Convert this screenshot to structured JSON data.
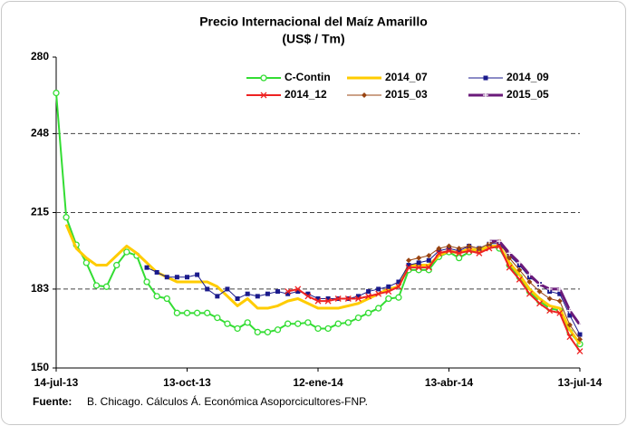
{
  "chart_data": {
    "type": "line",
    "title": "Precio Internacional del Maíz Amarillo",
    "subtitle": "(US$ / Tm)",
    "source_label": "Fuente:",
    "source_text": "B. Chicago. Cálculos Á. Económica Asoporcicultores-FNP.",
    "categories": [
      "14-jul-13",
      null,
      null,
      null,
      null,
      null,
      null,
      null,
      null,
      null,
      null,
      null,
      null,
      "13-oct-13",
      null,
      null,
      null,
      null,
      null,
      null,
      null,
      null,
      null,
      null,
      null,
      null,
      "12-ene-14",
      null,
      null,
      null,
      null,
      null,
      null,
      null,
      null,
      null,
      null,
      null,
      null,
      "13-abr-14",
      null,
      null,
      null,
      null,
      null,
      null,
      null,
      null,
      null,
      null,
      null,
      null,
      "13-jul-14"
    ],
    "ylim": [
      150,
      280
    ],
    "yticks": [
      150,
      183,
      215,
      248,
      280
    ],
    "grid": true,
    "legend": "top",
    "series": [
      {
        "name": "C-Contin",
        "color": "#33dd33",
        "marker": "circle",
        "width": 2,
        "values": [
          265,
          213,
          201.5,
          194,
          184.5,
          184,
          193,
          198.5,
          197,
          186,
          180,
          179,
          173,
          173,
          173,
          173,
          171,
          168.5,
          166.5,
          169,
          165,
          165,
          166,
          168.5,
          168.5,
          169,
          166.5,
          166.5,
          168.5,
          169,
          171,
          173,
          175,
          179,
          179.5,
          191,
          191,
          191,
          196.5,
          198.5,
          196,
          198.5,
          199.5,
          201,
          200,
          193,
          188,
          182,
          178,
          175,
          174,
          165,
          160
        ]
      },
      {
        "name": "2014_07",
        "color": "#ffcc00",
        "marker": "none",
        "width": 3,
        "values": [
          null,
          210,
          200,
          196,
          193,
          193,
          197,
          201,
          198,
          194,
          190,
          188,
          186,
          186,
          186,
          186,
          184,
          180,
          176,
          179,
          175,
          175,
          176,
          178,
          179,
          177,
          175,
          175,
          175,
          176,
          177,
          179,
          181,
          183,
          184,
          193,
          193,
          193,
          197,
          199,
          198,
          200,
          199,
          201,
          201,
          194,
          189,
          183,
          179,
          176,
          175,
          166,
          160
        ]
      },
      {
        "name": "2014_09",
        "color": "#1a1a8c",
        "marker": "square",
        "width": 1,
        "values": [
          null,
          null,
          null,
          null,
          null,
          null,
          null,
          null,
          null,
          192,
          190,
          188,
          188,
          188,
          189,
          183,
          180,
          183,
          179,
          181,
          180,
          181,
          182,
          181,
          182,
          181,
          179,
          179,
          179,
          179,
          180,
          182,
          183,
          184,
          186,
          193,
          194,
          195,
          199,
          200,
          199,
          201,
          200,
          202,
          202,
          197,
          193,
          188,
          185,
          182,
          181,
          172,
          164
        ]
      },
      {
        "name": "2014_12",
        "color": "#ee2222",
        "marker": "x",
        "width": 2,
        "values": [
          null,
          null,
          null,
          null,
          null,
          null,
          null,
          null,
          null,
          null,
          null,
          null,
          null,
          null,
          null,
          null,
          null,
          null,
          null,
          null,
          null,
          null,
          null,
          182,
          183,
          180,
          178,
          178,
          179,
          179,
          179,
          180,
          181,
          182,
          184,
          192,
          192,
          192,
          198,
          199,
          198,
          199,
          198,
          200,
          201,
          192,
          187,
          181,
          177,
          174,
          173,
          163,
          157
        ]
      },
      {
        "name": "2015_03",
        "color": "#994411",
        "marker": "diamond",
        "width": 1,
        "values": [
          null,
          null,
          null,
          null,
          null,
          null,
          null,
          null,
          null,
          null,
          null,
          null,
          null,
          null,
          null,
          null,
          null,
          null,
          null,
          null,
          null,
          null,
          null,
          null,
          null,
          null,
          null,
          null,
          null,
          null,
          null,
          null,
          null,
          null,
          null,
          195,
          196,
          197,
          200,
          201,
          200,
          201,
          200,
          202,
          203,
          196,
          191,
          186,
          182,
          179,
          178,
          168,
          162
        ]
      },
      {
        "name": "2015_05",
        "color": "#6a1a7a",
        "marker": "plus",
        "width": 3,
        "values": [
          null,
          null,
          null,
          null,
          null,
          null,
          null,
          null,
          null,
          null,
          null,
          null,
          null,
          null,
          null,
          null,
          null,
          null,
          null,
          null,
          null,
          null,
          null,
          null,
          null,
          null,
          null,
          null,
          null,
          null,
          null,
          null,
          null,
          null,
          null,
          null,
          null,
          null,
          null,
          null,
          null,
          null,
          null,
          203,
          203,
          198,
          194,
          189,
          185,
          183,
          183,
          174,
          168
        ]
      }
    ]
  }
}
